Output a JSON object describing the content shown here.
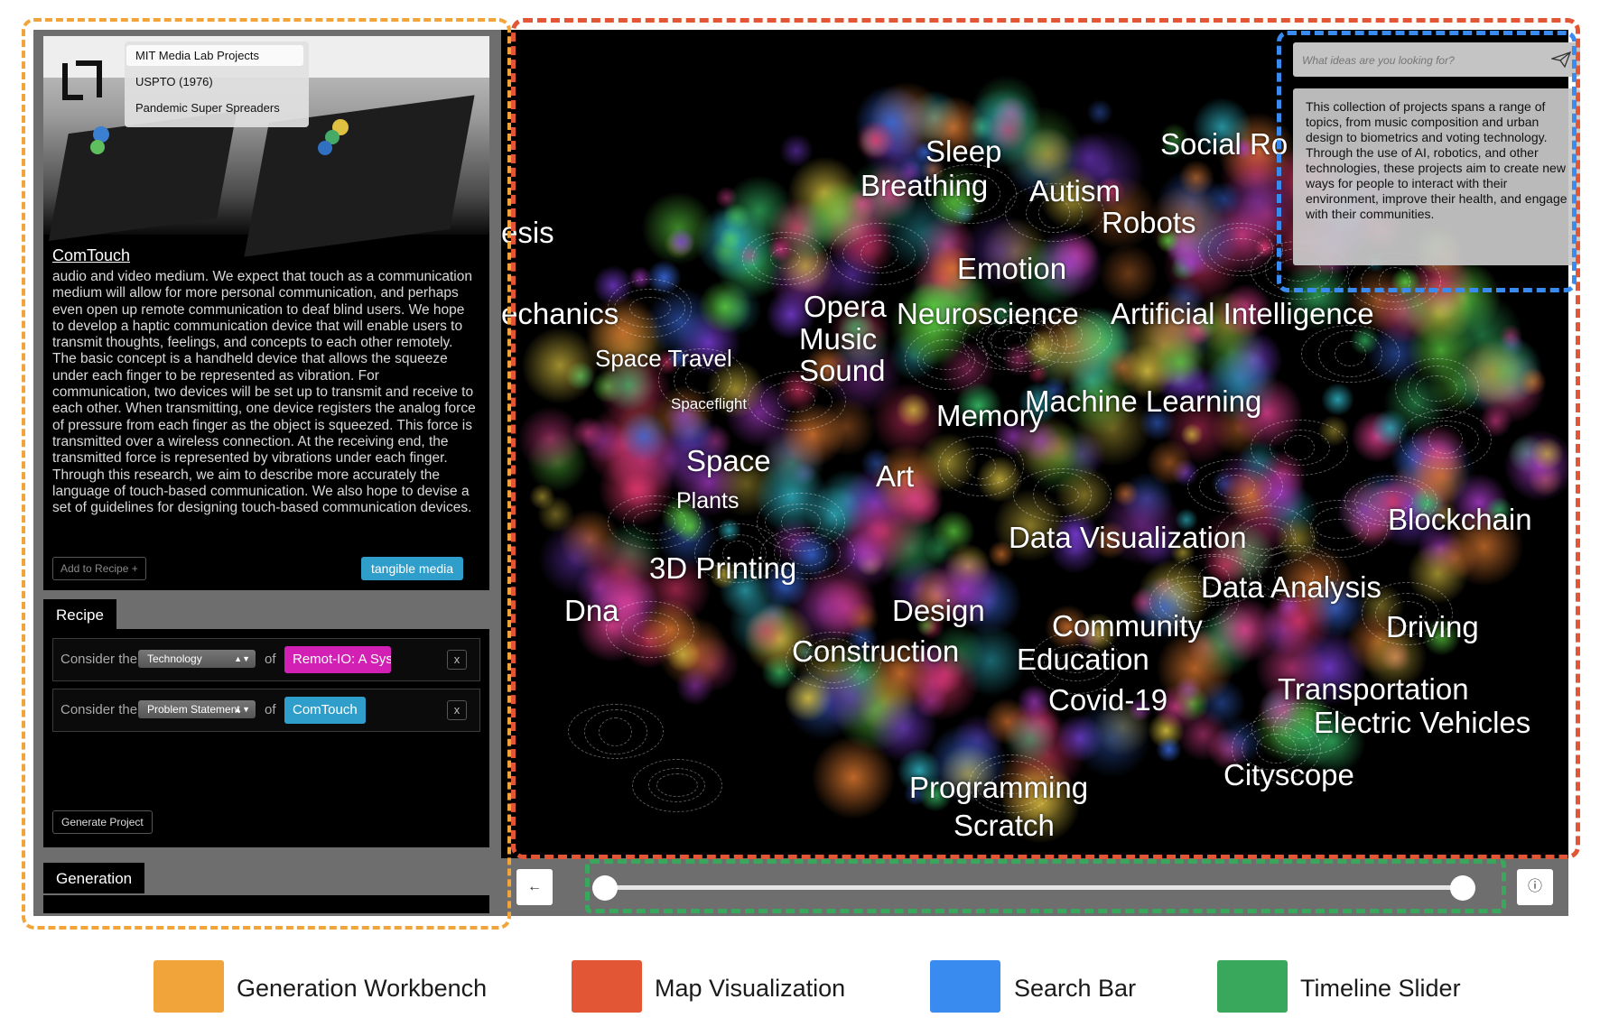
{
  "workbench": {
    "datasets": [
      "MIT Media Lab Projects",
      "USPTO (1976)",
      "Pandemic Super Spreaders"
    ],
    "card": {
      "title": "ComTouch",
      "description": "audio and video medium. We expect that touch as a communication medium will allow for more personal communication, and perhaps even open up remote communication to deaf blind users. We hope to develop a haptic communication device that will enable users to transmit thoughts, feelings, and concepts to each other remotely. The basic concept is a handheld device that allows the squeeze under each finger to be represented as vibration. For communication, two devices will be set up to transmit and receive to each other. When transmitting, one device registers the analog force of pressure from each finger as the object is squeezed. This force is transmitted over a wireless connection. At the receiving end, the transmitted force is represented by vibrations under each finger. Through this research, we aim to describe more accurately the language of touch-based communication. We also hope to devise a set of guidelines for designing touch-based communication devices.",
      "add_label": "Add to Recipe +",
      "tag": "tangible media"
    },
    "recipe": {
      "tab": "Recipe",
      "rows": [
        {
          "prefix": "Consider the",
          "field": "Technology",
          "of": "of",
          "project": "Remot-IO: A Sys",
          "color": "#d21fb4",
          "remove": "x"
        },
        {
          "prefix": "Consider the",
          "field": "Problem Statement",
          "of": "of",
          "project": "ComTouch",
          "color": "#2f9ecb",
          "remove": "x"
        }
      ],
      "generate_label": "Generate Project"
    },
    "generation": {
      "tab": "Generation"
    }
  },
  "map": {
    "topics": [
      "Sleep",
      "Social Ro",
      "Breathing",
      "Autism",
      "Robots",
      "esis",
      "Emotion",
      "echanics",
      "Opera",
      "Neuroscience",
      "Artificial Intelligence",
      "Music",
      "Sound",
      "Space Travel",
      "Spaceflight",
      "Machine Learning",
      "Memory",
      "Space",
      "Art",
      "Plants",
      "Blockchain",
      "Data Visualization",
      "3D Printing",
      "Data Analysis",
      "Dna",
      "Design",
      "Community",
      "Driving",
      "Construction",
      "Education",
      "Transportation",
      "Covid-19",
      "Electric Vehicles",
      "Cityscope",
      "Programming",
      "Scratch"
    ]
  },
  "search": {
    "placeholder": "What ideas are you looking for?",
    "summary": "This collection of projects spans a range of topics, from music composition and urban design to biometrics and voting technology. Through the use of AI, robotics, and other technologies, these projects aim to create new ways for people to interact with their environment, improve their health, and engage with their communities."
  },
  "timeline": {
    "back_icon": "←",
    "info_icon": "ⓘ",
    "range": [
      0,
      1
    ]
  },
  "legend": [
    {
      "label": "Generation Workbench",
      "color": "#f1a43a"
    },
    {
      "label": "Map Visualization",
      "color": "#e25535"
    },
    {
      "label": "Search Bar",
      "color": "#3a8bef"
    },
    {
      "label": "Timeline Slider",
      "color": "#3aa85c"
    }
  ]
}
